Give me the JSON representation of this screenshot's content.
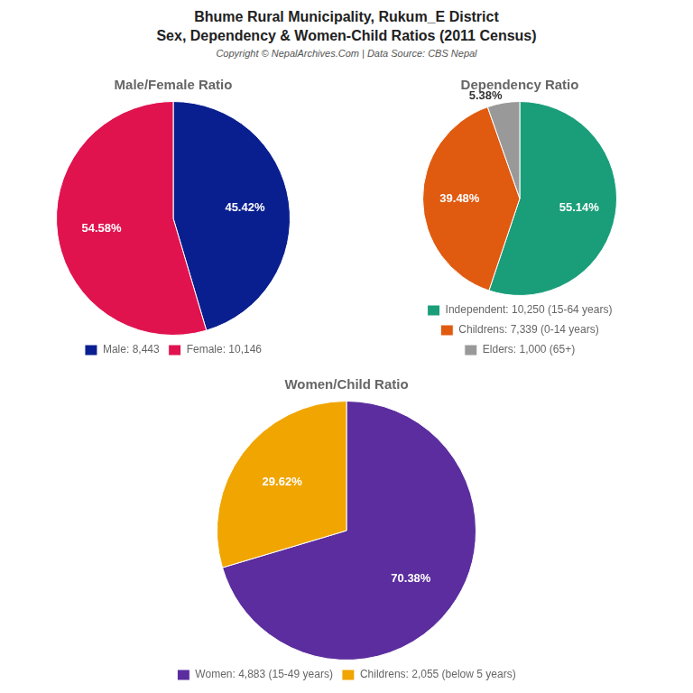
{
  "title": [
    "Bhume Rural Municipality, Rukum_E District",
    "Sex, Dependency & Women-Child Ratios (2011 Census)"
  ],
  "subtitle": "Copyright © NepalArchives.Com | Data Source: CBS Nepal",
  "chart_data": [
    {
      "type": "pie",
      "title": "Male/Female Ratio",
      "categories": [
        "Male: 8,443",
        "Female: 10,146"
      ],
      "values": [
        45.42,
        54.58
      ],
      "value_labels": [
        "45.42%",
        "54.58%"
      ],
      "colors": [
        "#0a1f8f",
        "#e0134f"
      ],
      "data_labels": true,
      "legend": "bottom"
    },
    {
      "type": "pie",
      "title": "Dependency Ratio",
      "categories": [
        "Independent: 10,250 (15-64 years)",
        "Childrens: 7,339 (0-14 years)",
        "Elders: 1,000 (65+)"
      ],
      "values": [
        55.14,
        39.48,
        5.38
      ],
      "value_labels": [
        "55.14%",
        "39.48%",
        "5.38%"
      ],
      "colors": [
        "#1a9e7a",
        "#e05a10",
        "#999999"
      ],
      "data_labels": true,
      "legend": "bottom"
    },
    {
      "type": "pie",
      "title": "Women/Child Ratio",
      "categories": [
        "Women: 4,883 (15-49 years)",
        "Childrens: 2,055 (below 5 years)"
      ],
      "values": [
        70.38,
        29.62
      ],
      "value_labels": [
        "70.38%",
        "29.62%"
      ],
      "colors": [
        "#5b2d9e",
        "#f0a500"
      ],
      "data_labels": true,
      "legend": "bottom"
    }
  ]
}
